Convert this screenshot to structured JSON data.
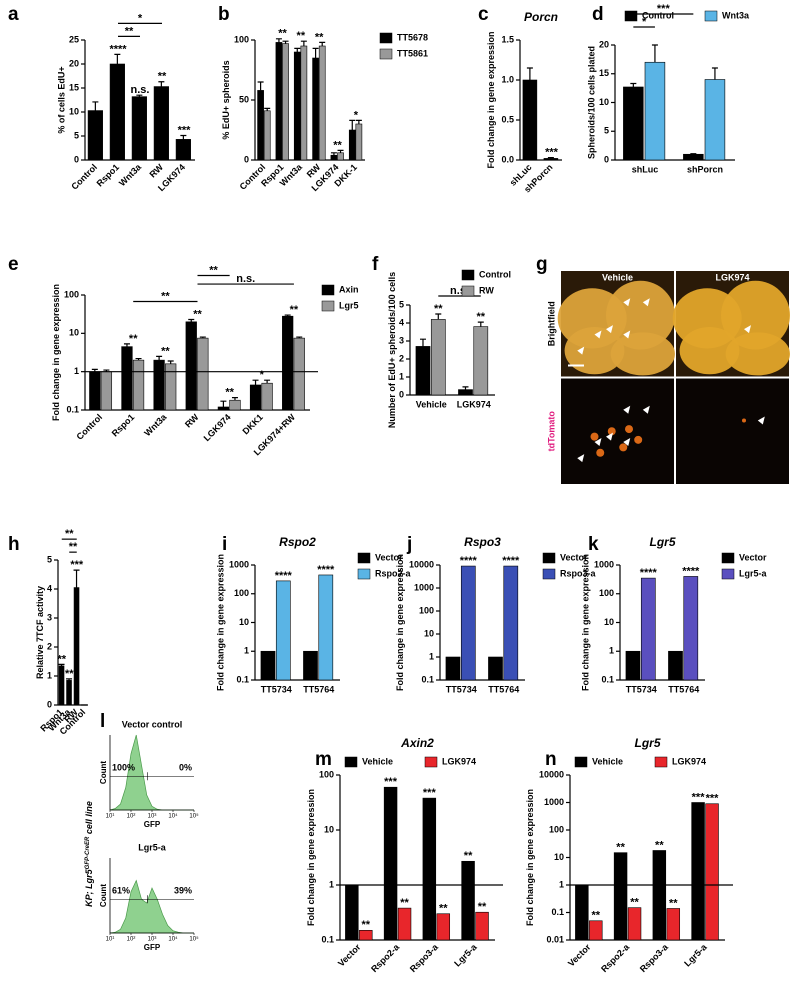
{
  "chart_data": [
    {
      "type": "bar",
      "letter": "a",
      "ylabel": "% of cells EdU+",
      "categories": [
        "Control",
        "Rspo1",
        "Wnt3a",
        "RW",
        "LGK974"
      ],
      "series": [
        {
          "color": "#000000",
          "values": [
            10.3,
            20,
            13.2,
            15.3,
            4.3
          ],
          "errors": [
            1.8,
            2,
            0.3,
            1,
            0.8
          ]
        }
      ],
      "annotations": [
        null,
        "****",
        "n.s.",
        "**",
        "***"
      ],
      "brackets": [
        {
          "label": "**",
          "from": 1,
          "to": 2
        },
        {
          "label": "*",
          "from": 1,
          "to": 3
        }
      ],
      "ylim": [
        0,
        25
      ],
      "yticks": [
        0,
        5,
        10,
        15,
        20,
        25
      ]
    },
    {
      "type": "bar",
      "letter": "b",
      "ylabel": "% EdU+ spheroids",
      "categories": [
        "Control",
        "Rspo1",
        "Wnt3a",
        "RW",
        "LGK974",
        "DKK-1"
      ],
      "series": [
        {
          "name": "TT5678",
          "color": "#000000",
          "values": [
            58,
            98,
            90,
            85,
            4,
            25
          ],
          "errors": [
            7,
            3,
            3,
            8,
            2,
            8
          ]
        },
        {
          "name": "TT5861",
          "color": "#999999",
          "values": [
            41,
            97,
            95,
            95,
            6,
            30
          ],
          "errors": [
            2,
            2,
            4,
            3,
            2,
            3
          ]
        }
      ],
      "annotations": [
        null,
        "**",
        "**",
        "**",
        "**",
        "*"
      ],
      "ylim": [
        0,
        100
      ],
      "yticks": [
        0,
        50,
        100
      ]
    },
    {
      "type": "bar",
      "letter": "c",
      "title": "Porcn",
      "ylabel": "Fold change in gene expression",
      "categories": [
        "shLuc",
        "shPorcn"
      ],
      "series": [
        {
          "color": "#000000",
          "values": [
            1,
            0.02
          ],
          "errors": [
            0.15,
            0.01
          ]
        }
      ],
      "annotations": [
        null,
        "***"
      ],
      "ylim": [
        0,
        1.5
      ],
      "yticks": [
        {
          "value": 0,
          "label": "0.0"
        },
        0.5,
        {
          "value": 1,
          "label": "1.0"
        },
        1.5
      ]
    },
    {
      "type": "bar",
      "letter": "d",
      "ylabel": "Spheroids/100 cells plated",
      "categories": [
        "shLuc",
        "shPorcn"
      ],
      "series": [
        {
          "name": "Control",
          "color": "#000000",
          "values": [
            12.7,
            1
          ],
          "errors": [
            0.6,
            0.1
          ]
        },
        {
          "name": "Wnt3a",
          "color": "#5ab4e5",
          "values": [
            17,
            14
          ],
          "errors": [
            3,
            2
          ]
        }
      ],
      "brackets": [
        {
          "label": "*",
          "from": [
            0,
            0
          ],
          "to": [
            0,
            1
          ]
        },
        {
          "label": "***",
          "from": [
            0,
            0
          ],
          "to": [
            1,
            0
          ]
        }
      ],
      "ylim": [
        0,
        20
      ],
      "yticks": [
        0,
        5,
        10,
        15,
        20
      ]
    },
    {
      "type": "bar",
      "letter": "e",
      "ylabel": "Fold change in gene expression",
      "log": true,
      "hline": 1,
      "categories": [
        "Control",
        "Rspo1",
        "Wnt3a",
        "RW",
        "LGK974",
        "DKK1",
        "LGK974+RW"
      ],
      "series": [
        {
          "name": "Axin",
          "color": "#000000",
          "values": [
            1,
            4.5,
            2,
            20,
            0.12,
            0.45,
            28
          ],
          "errors": [
            0.15,
            0.8,
            0.5,
            3,
            0.05,
            0.15,
            2
          ]
        },
        {
          "name": "Lgr5",
          "color": "#999999",
          "values": [
            1,
            2,
            1.6,
            7.5,
            0.18,
            0.5,
            7.5
          ],
          "errors": [
            0.1,
            0.2,
            0.3,
            0.5,
            0.03,
            0.1,
            0.5
          ]
        }
      ],
      "annotations": [
        null,
        "**",
        "**",
        "**",
        "**",
        "*",
        "**"
      ],
      "brackets": [
        {
          "label": "**",
          "from": 1,
          "to": 3
        },
        {
          "label": "n.s.",
          "from": 3,
          "to": 6
        },
        {
          "label": "**",
          "from": 3,
          "to": 4
        }
      ],
      "ylim": [
        0.1,
        100
      ],
      "yticks": [
        0.1,
        1,
        10,
        100
      ]
    },
    {
      "type": "bar",
      "letter": "f",
      "ylabel": "Number of EdU+ spheroids/100 cells",
      "categories": [
        "Vehicle",
        "LGK974"
      ],
      "series": [
        {
          "name": "Control",
          "color": "#000000",
          "values": [
            2.7,
            0.3
          ],
          "errors": [
            0.4,
            0.15
          ]
        },
        {
          "name": "RW",
          "color": "#999999",
          "values": [
            4.2,
            3.8
          ],
          "errors": [
            0.3,
            0.25
          ],
          "annotations": [
            "**",
            "**"
          ]
        }
      ],
      "brackets": [
        {
          "label": "n.s.",
          "from": [
            0,
            1
          ],
          "to": [
            1,
            1
          ]
        }
      ],
      "ylim": [
        0,
        5
      ],
      "yticks": [
        0,
        1,
        2,
        3,
        4,
        5
      ]
    },
    {
      "type": "image",
      "letter": "g",
      "columns": [
        "Vehicle",
        "LGK974"
      ],
      "rows": [
        "Brightfield",
        "tdTomato"
      ]
    },
    {
      "type": "bar",
      "letter": "h",
      "ylabel": "Relative 7TCF activity",
      "categories": [
        "Rspo1",
        "Wnt3a",
        "RW",
        "Control"
      ],
      "series": [
        {
          "color": "#000000",
          "values": [
            1.35,
            0.85,
            4.05,
            0
          ],
          "errors": [
            0.05,
            0.05,
            0.6,
            0
          ]
        }
      ],
      "annotations": [
        "**",
        "**",
        "***",
        null
      ],
      "brackets": [
        {
          "label": "**",
          "from": 1,
          "to": 2
        },
        {
          "label": "**",
          "from": 0,
          "to": 2
        }
      ],
      "ylim": [
        0,
        5
      ],
      "yticks": [
        0,
        1,
        2,
        3,
        4,
        5
      ]
    },
    {
      "type": "bar",
      "letter": "i",
      "title": "Rspo2",
      "ylabel": "Fold change in gene expression",
      "log": true,
      "categories": [
        "TT5734",
        "TT5764"
      ],
      "series": [
        {
          "name": "Vector",
          "color": "#000000",
          "values": [
            1,
            1
          ]
        },
        {
          "name": "Rspo2-a",
          "color": "#5ab4e5",
          "values": [
            280,
            450
          ],
          "annotations": [
            "****",
            "****"
          ]
        }
      ],
      "ylim": [
        0.1,
        1000
      ],
      "yticks": [
        0.1,
        1,
        10,
        100,
        1000
      ]
    },
    {
      "type": "bar",
      "letter": "j",
      "title": "Rspo3",
      "ylabel": "Fold change in gene expression",
      "log": true,
      "categories": [
        "TT5734",
        "TT5764"
      ],
      "series": [
        {
          "name": "Vector",
          "color": "#000000",
          "values": [
            1,
            1
          ]
        },
        {
          "name": "Rspo3-a",
          "color": "#3a4fb5",
          "values": [
            9000,
            9000
          ],
          "annotations": [
            "****",
            "****"
          ]
        }
      ],
      "ylim": [
        0.1,
        10000
      ],
      "yticks": [
        0.1,
        1,
        10,
        100,
        1000,
        10000
      ]
    },
    {
      "type": "bar",
      "letter": "k",
      "title": "Lgr5",
      "ylabel": "Fold change in gene expression",
      "log": true,
      "categories": [
        "TT5734",
        "TT5764"
      ],
      "series": [
        {
          "name": "Vector",
          "color": "#000000",
          "values": [
            1,
            1
          ]
        },
        {
          "name": "Lgr5-a",
          "color": "#5a4fbf",
          "values": [
            350,
            400
          ],
          "annotations": [
            "****",
            "****"
          ]
        }
      ],
      "ylim": [
        0.1,
        1000
      ],
      "yticks": [
        0.1,
        1,
        10,
        100,
        1000
      ]
    },
    {
      "type": "flow",
      "letter": "l",
      "ylabel": "Count",
      "xlabel": "GFP",
      "side_label": [
        "KP; Lgr5",
        "GFP-CreER",
        " cell line"
      ],
      "color": "#8fd18f",
      "gate": 600,
      "x": [
        10,
        17.8,
        31.6,
        56.2,
        100,
        178,
        316,
        562,
        1000,
        1778,
        3162,
        5623,
        10000,
        17783,
        31623,
        56234,
        100000
      ],
      "xlim": [
        10,
        100000
      ],
      "ylim": [
        0,
        100
      ],
      "xticks": [
        {
          "value": 10,
          "label": "10¹"
        },
        {
          "value": 100,
          "label": "10²"
        },
        {
          "value": 1000,
          "label": "10³"
        },
        {
          "value": 10000,
          "label": "10⁴"
        },
        {
          "value": 100000,
          "label": "10⁵"
        }
      ],
      "panels": [
        {
          "title": "Vector control",
          "left_label": "100%",
          "right_label": "0%",
          "values": [
            0,
            2,
            8,
            30,
            75,
            100,
            60,
            20,
            5,
            1,
            0,
            0,
            0,
            0,
            0,
            0,
            0
          ]
        },
        {
          "title": "Lgr5-a",
          "left_label": "61%",
          "right_label": "39%",
          "values": [
            0,
            1,
            5,
            20,
            55,
            70,
            45,
            40,
            60,
            45,
            25,
            10,
            3,
            1,
            0,
            0,
            0
          ]
        }
      ]
    },
    {
      "type": "bar",
      "letter": "m",
      "title": "Axin2",
      "ylabel": "Fold change in gene expression",
      "log": true,
      "hline": 1,
      "categories": [
        "Vector",
        "Rspo2-a",
        "Rspo3-a",
        "Lgr5-a"
      ],
      "series": [
        {
          "name": "Vehicle",
          "color": "#000000",
          "values": [
            1,
            60,
            38,
            2.7
          ],
          "annotations": [
            null,
            "***",
            "***",
            "**"
          ]
        },
        {
          "name": "LGK974",
          "color": "#e8262b",
          "values": [
            0.15,
            0.38,
            0.3,
            0.32
          ],
          "annotations": [
            "**",
            "**",
            "**",
            "**"
          ]
        }
      ],
      "ylim": [
        0.1,
        100
      ],
      "yticks": [
        0.1,
        1,
        10,
        100
      ]
    },
    {
      "type": "bar",
      "letter": "n",
      "title": "Lgr5",
      "ylabel": "Fold change in gene expression",
      "log": true,
      "hline": 1,
      "categories": [
        "Vector",
        "Rspo2-a",
        "Rspo3-a",
        "Lgr5-a"
      ],
      "series": [
        {
          "name": "Vehicle",
          "color": "#000000",
          "values": [
            1,
            15,
            18,
            1000
          ],
          "annotations": [
            null,
            "**",
            "**",
            "***"
          ]
        },
        {
          "name": "LGK974",
          "color": "#e8262b",
          "values": [
            0.05,
            0.15,
            0.14,
            900
          ],
          "annotations": [
            "**",
            "**",
            "**",
            "***"
          ]
        }
      ],
      "ylim": [
        0.01,
        10000
      ],
      "yticks": [
        0.01,
        0.1,
        1,
        10,
        100,
        1000,
        10000
      ]
    }
  ]
}
